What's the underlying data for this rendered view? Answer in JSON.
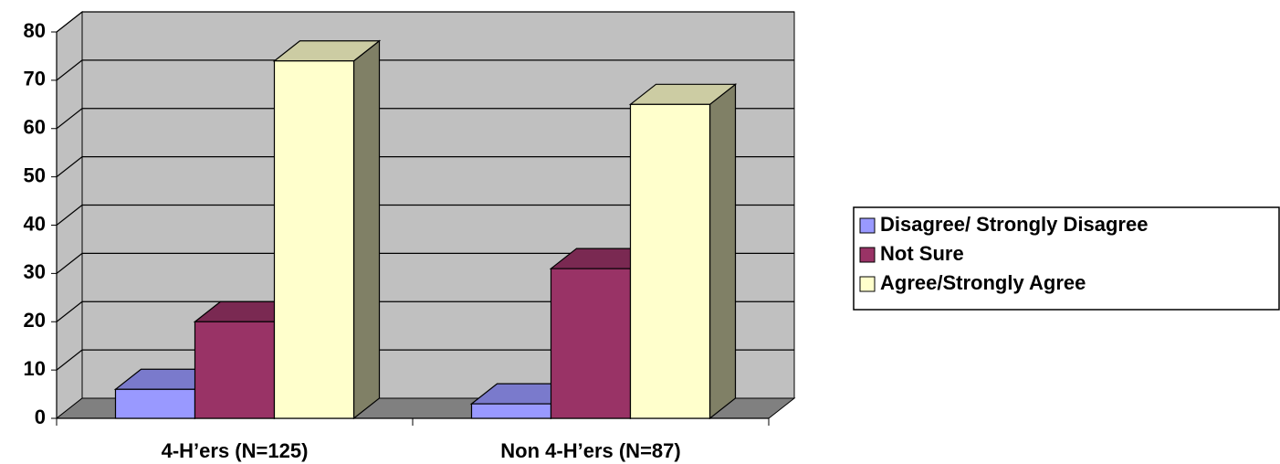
{
  "chart_data": {
    "type": "bar3d",
    "categories": [
      "4-H’ers (N=125)",
      "Non 4-H’ers (N=87)"
    ],
    "series": [
      {
        "name": "Disagree/ Strongly Disagree",
        "color": "#9999ff",
        "values": [
          6,
          3
        ]
      },
      {
        "name": "Not Sure",
        "color": "#993366",
        "values": [
          20,
          31
        ]
      },
      {
        "name": "Agree/Strongly Agree",
        "color": "#ffffcc",
        "values": [
          74,
          65
        ]
      }
    ],
    "ylim": [
      0,
      80
    ],
    "yticks": [
      0,
      10,
      20,
      30,
      40,
      50,
      60,
      70,
      80
    ],
    "grid": true,
    "legend": "right"
  }
}
